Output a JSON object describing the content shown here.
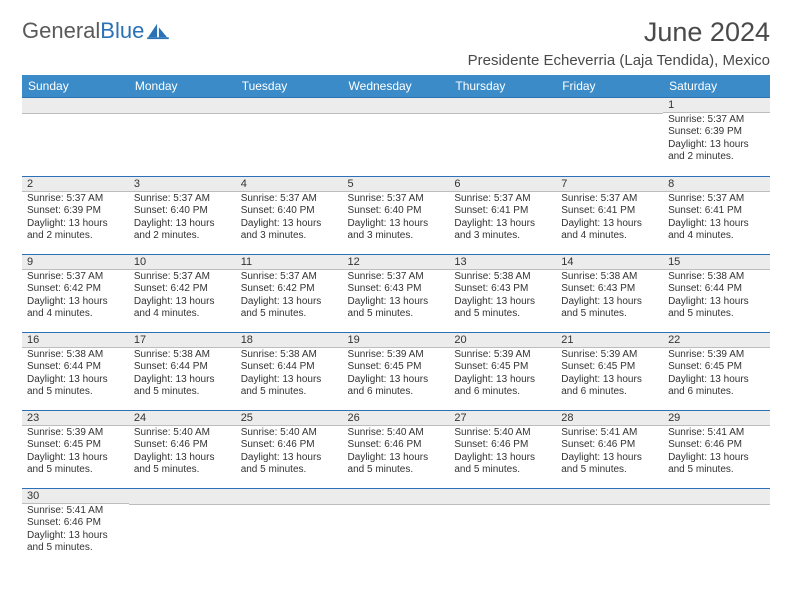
{
  "logo": {
    "text1": "General",
    "text2": "Blue"
  },
  "title": "June 2024",
  "location": "Presidente Echeverria (Laja Tendida), Mexico",
  "header_bg": "#3b8bc8",
  "weekdays": [
    "Sunday",
    "Monday",
    "Tuesday",
    "Wednesday",
    "Thursday",
    "Friday",
    "Saturday"
  ],
  "grid": [
    [
      {
        "n": null
      },
      {
        "n": null
      },
      {
        "n": null
      },
      {
        "n": null
      },
      {
        "n": null
      },
      {
        "n": null
      },
      {
        "n": 1,
        "sr": "5:37 AM",
        "ss": "6:39 PM",
        "dl": "13 hours and 2 minutes."
      }
    ],
    [
      {
        "n": 2,
        "sr": "5:37 AM",
        "ss": "6:39 PM",
        "dl": "13 hours and 2 minutes."
      },
      {
        "n": 3,
        "sr": "5:37 AM",
        "ss": "6:40 PM",
        "dl": "13 hours and 2 minutes."
      },
      {
        "n": 4,
        "sr": "5:37 AM",
        "ss": "6:40 PM",
        "dl": "13 hours and 3 minutes."
      },
      {
        "n": 5,
        "sr": "5:37 AM",
        "ss": "6:40 PM",
        "dl": "13 hours and 3 minutes."
      },
      {
        "n": 6,
        "sr": "5:37 AM",
        "ss": "6:41 PM",
        "dl": "13 hours and 3 minutes."
      },
      {
        "n": 7,
        "sr": "5:37 AM",
        "ss": "6:41 PM",
        "dl": "13 hours and 4 minutes."
      },
      {
        "n": 8,
        "sr": "5:37 AM",
        "ss": "6:41 PM",
        "dl": "13 hours and 4 minutes."
      }
    ],
    [
      {
        "n": 9,
        "sr": "5:37 AM",
        "ss": "6:42 PM",
        "dl": "13 hours and 4 minutes."
      },
      {
        "n": 10,
        "sr": "5:37 AM",
        "ss": "6:42 PM",
        "dl": "13 hours and 4 minutes."
      },
      {
        "n": 11,
        "sr": "5:37 AM",
        "ss": "6:42 PM",
        "dl": "13 hours and 5 minutes."
      },
      {
        "n": 12,
        "sr": "5:37 AM",
        "ss": "6:43 PM",
        "dl": "13 hours and 5 minutes."
      },
      {
        "n": 13,
        "sr": "5:38 AM",
        "ss": "6:43 PM",
        "dl": "13 hours and 5 minutes."
      },
      {
        "n": 14,
        "sr": "5:38 AM",
        "ss": "6:43 PM",
        "dl": "13 hours and 5 minutes."
      },
      {
        "n": 15,
        "sr": "5:38 AM",
        "ss": "6:44 PM",
        "dl": "13 hours and 5 minutes."
      }
    ],
    [
      {
        "n": 16,
        "sr": "5:38 AM",
        "ss": "6:44 PM",
        "dl": "13 hours and 5 minutes."
      },
      {
        "n": 17,
        "sr": "5:38 AM",
        "ss": "6:44 PM",
        "dl": "13 hours and 5 minutes."
      },
      {
        "n": 18,
        "sr": "5:38 AM",
        "ss": "6:44 PM",
        "dl": "13 hours and 5 minutes."
      },
      {
        "n": 19,
        "sr": "5:39 AM",
        "ss": "6:45 PM",
        "dl": "13 hours and 6 minutes."
      },
      {
        "n": 20,
        "sr": "5:39 AM",
        "ss": "6:45 PM",
        "dl": "13 hours and 6 minutes."
      },
      {
        "n": 21,
        "sr": "5:39 AM",
        "ss": "6:45 PM",
        "dl": "13 hours and 6 minutes."
      },
      {
        "n": 22,
        "sr": "5:39 AM",
        "ss": "6:45 PM",
        "dl": "13 hours and 6 minutes."
      }
    ],
    [
      {
        "n": 23,
        "sr": "5:39 AM",
        "ss": "6:45 PM",
        "dl": "13 hours and 5 minutes."
      },
      {
        "n": 24,
        "sr": "5:40 AM",
        "ss": "6:46 PM",
        "dl": "13 hours and 5 minutes."
      },
      {
        "n": 25,
        "sr": "5:40 AM",
        "ss": "6:46 PM",
        "dl": "13 hours and 5 minutes."
      },
      {
        "n": 26,
        "sr": "5:40 AM",
        "ss": "6:46 PM",
        "dl": "13 hours and 5 minutes."
      },
      {
        "n": 27,
        "sr": "5:40 AM",
        "ss": "6:46 PM",
        "dl": "13 hours and 5 minutes."
      },
      {
        "n": 28,
        "sr": "5:41 AM",
        "ss": "6:46 PM",
        "dl": "13 hours and 5 minutes."
      },
      {
        "n": 29,
        "sr": "5:41 AM",
        "ss": "6:46 PM",
        "dl": "13 hours and 5 minutes."
      }
    ],
    [
      {
        "n": 30,
        "sr": "5:41 AM",
        "ss": "6:46 PM",
        "dl": "13 hours and 5 minutes."
      },
      {
        "n": null
      },
      {
        "n": null
      },
      {
        "n": null
      },
      {
        "n": null
      },
      {
        "n": null
      },
      {
        "n": null
      }
    ]
  ],
  "labels": {
    "sunrise": "Sunrise:",
    "sunset": "Sunset:",
    "daylight": "Daylight:"
  }
}
